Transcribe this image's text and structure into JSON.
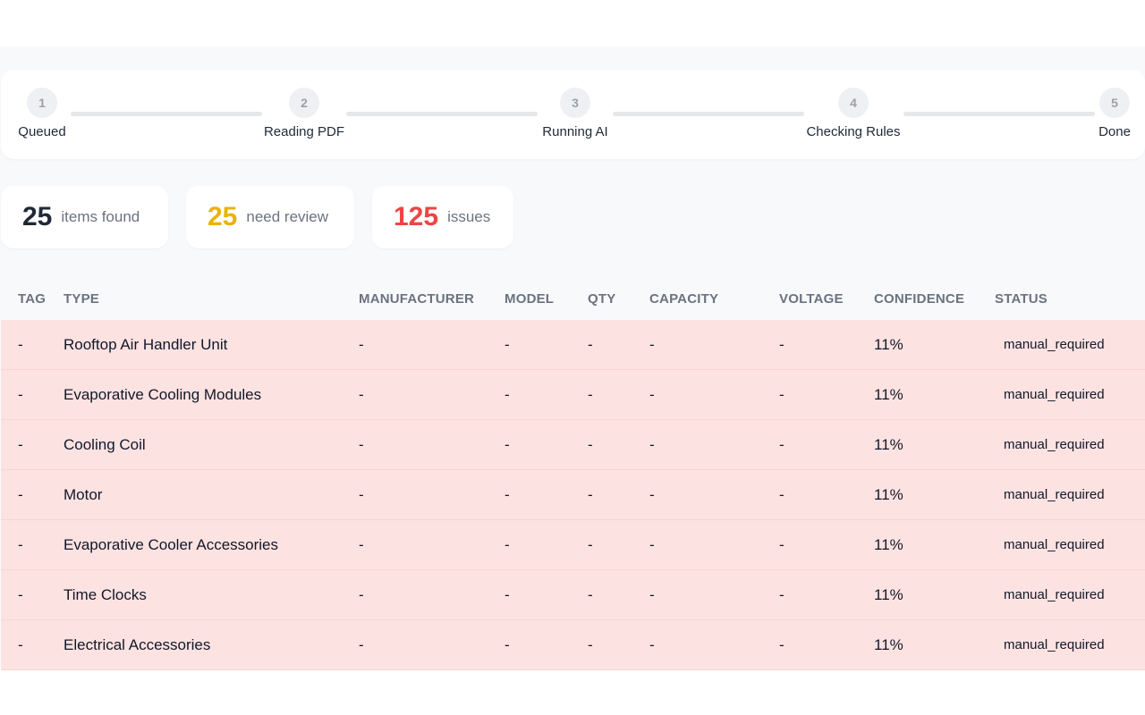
{
  "stepper": {
    "steps": [
      {
        "number": "1",
        "label": "Queued"
      },
      {
        "number": "2",
        "label": "Reading PDF"
      },
      {
        "number": "3",
        "label": "Running AI"
      },
      {
        "number": "4",
        "label": "Checking Rules"
      },
      {
        "number": "5",
        "label": "Done"
      }
    ]
  },
  "stats": {
    "items_found": {
      "value": "25",
      "label": "items found",
      "color": "#1f2937"
    },
    "need_review": {
      "value": "25",
      "label": "need review",
      "color": "#eab308"
    },
    "issues": {
      "value": "125",
      "label": "issues",
      "color": "#ef4444"
    }
  },
  "table": {
    "headers": [
      "TAG",
      "TYPE",
      "MANUFACTURER",
      "MODEL",
      "QTY",
      "CAPACITY",
      "VOLTAGE",
      "CONFIDENCE",
      "STATUS"
    ],
    "rows": [
      {
        "tag": "-",
        "type": "Rooftop Air Handler Unit",
        "manufacturer": "-",
        "model": "-",
        "qty": "-",
        "capacity": "-",
        "voltage": "-",
        "confidence": "11%",
        "status": "manual_required"
      },
      {
        "tag": "-",
        "type": "Evaporative Cooling Modules",
        "manufacturer": "-",
        "model": "-",
        "qty": "-",
        "capacity": "-",
        "voltage": "-",
        "confidence": "11%",
        "status": "manual_required"
      },
      {
        "tag": "-",
        "type": "Cooling Coil",
        "manufacturer": "-",
        "model": "-",
        "qty": "-",
        "capacity": "-",
        "voltage": "-",
        "confidence": "11%",
        "status": "manual_required"
      },
      {
        "tag": "-",
        "type": "Motor",
        "manufacturer": "-",
        "model": "-",
        "qty": "-",
        "capacity": "-",
        "voltage": "-",
        "confidence": "11%",
        "status": "manual_required"
      },
      {
        "tag": "-",
        "type": "Evaporative Cooler Accessories",
        "manufacturer": "-",
        "model": "-",
        "qty": "-",
        "capacity": "-",
        "voltage": "-",
        "confidence": "11%",
        "status": "manual_required"
      },
      {
        "tag": "-",
        "type": "Time Clocks",
        "manufacturer": "-",
        "model": "-",
        "qty": "-",
        "capacity": "-",
        "voltage": "-",
        "confidence": "11%",
        "status": "manual_required"
      },
      {
        "tag": "-",
        "type": "Electrical Accessories",
        "manufacturer": "-",
        "model": "-",
        "qty": "-",
        "capacity": "-",
        "voltage": "-",
        "confidence": "11%",
        "status": "manual_required"
      }
    ],
    "row_color": "#fde2e2"
  }
}
